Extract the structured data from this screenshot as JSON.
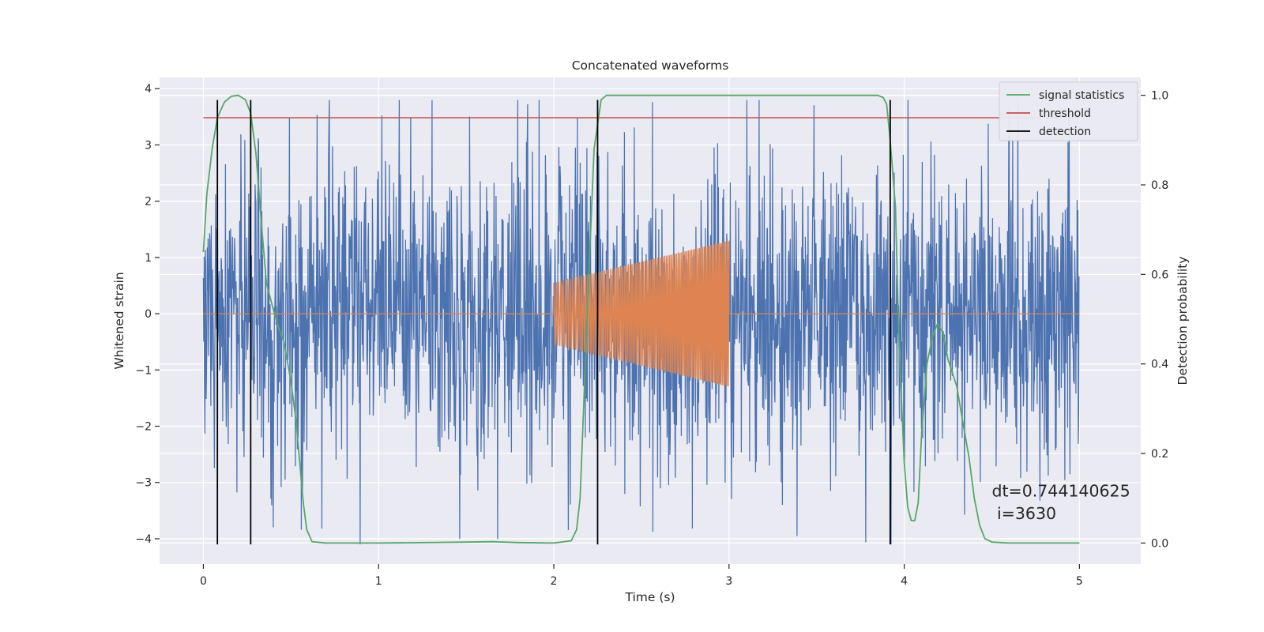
{
  "chart_data": {
    "type": "line",
    "title": "Concatenated waveforms",
    "xlabel": "Time (s)",
    "ylabel_left": "Whitened strain",
    "ylabel_right": "Detection probability",
    "xlim": [
      -0.25,
      5.35
    ],
    "ylim_left": [
      -4.45,
      4.2
    ],
    "ylim_right": [
      -0.047,
      1.04
    ],
    "x_ticks": [
      0,
      1,
      2,
      3,
      4,
      5
    ],
    "x_tick_labels": [
      "0",
      "1",
      "2",
      "3",
      "4",
      "5"
    ],
    "y_left_ticks": [
      -4,
      -3,
      -2,
      -1,
      0,
      1,
      2,
      3,
      4
    ],
    "y_left_tick_labels": [
      "−4",
      "−3",
      "−2",
      "−1",
      "0",
      "1",
      "2",
      "3",
      "4"
    ],
    "y_right_ticks": [
      0.0,
      0.2,
      0.4,
      0.6,
      0.8,
      1.0
    ],
    "y_right_tick_labels": [
      "0.0",
      "0.2",
      "0.4",
      "0.6",
      "0.8",
      "1.0"
    ],
    "grid": true,
    "legend": {
      "placement": "top-right",
      "entries": [
        "signal statistics",
        "threshold",
        "detection"
      ]
    },
    "colors": {
      "noise": "#4c72b0",
      "signal": "#dd8452",
      "statistics": "#55a868",
      "threshold": "#c44e52",
      "detection": "#000000",
      "background": "#eaeaf2",
      "grid": "#ffffff"
    },
    "noise": {
      "name": "whitened strain",
      "axis": "left",
      "x_range": [
        0,
        5
      ],
      "amplitude_std": 0.9,
      "peak_min": -4.1,
      "peak_max": 3.8
    },
    "signal": {
      "name": "injected waveform",
      "axis": "left",
      "x_range": [
        0,
        5
      ],
      "chirp_start": 2.0,
      "chirp_end": 3.0,
      "amplitude_start": 0.55,
      "amplitude_end": 1.3,
      "cycles": 95
    },
    "statistics": {
      "name": "signal statistics",
      "axis": "right",
      "x": [
        0.0,
        0.02,
        0.05,
        0.08,
        0.12,
        0.16,
        0.2,
        0.24,
        0.27,
        0.3,
        0.33,
        0.36,
        0.4,
        0.43,
        0.46,
        0.5,
        0.53,
        0.55,
        0.57,
        0.59,
        0.62,
        0.7,
        1.0,
        1.5,
        1.65,
        1.8,
        2.0,
        2.1,
        2.13,
        2.15,
        2.17,
        2.2,
        2.23,
        2.27,
        2.3,
        2.4,
        3.0,
        3.5,
        3.85,
        3.88,
        3.9,
        3.92,
        3.95,
        3.97,
        4.0,
        4.02,
        4.04,
        4.06,
        4.08,
        4.1,
        4.13,
        4.16,
        4.19,
        4.22,
        4.25,
        4.3,
        4.33,
        4.37,
        4.4,
        4.43,
        4.46,
        4.5,
        4.6,
        5.0
      ],
      "y": [
        0.65,
        0.78,
        0.88,
        0.95,
        0.985,
        0.998,
        1.0,
        0.99,
        0.96,
        0.87,
        0.72,
        0.58,
        0.52,
        0.48,
        0.45,
        0.36,
        0.27,
        0.18,
        0.09,
        0.03,
        0.003,
        0.0,
        0.0,
        0.002,
        0.003,
        0.001,
        0.0,
        0.005,
        0.03,
        0.1,
        0.3,
        0.6,
        0.88,
        0.99,
        1.0,
        1.0,
        1.0,
        1.0,
        1.0,
        0.995,
        0.98,
        0.9,
        0.75,
        0.45,
        0.18,
        0.08,
        0.05,
        0.05,
        0.09,
        0.25,
        0.4,
        0.46,
        0.49,
        0.47,
        0.41,
        0.35,
        0.28,
        0.19,
        0.1,
        0.04,
        0.01,
        0.002,
        0.0,
        0.0
      ]
    },
    "threshold": {
      "name": "threshold",
      "axis": "right",
      "value": 0.95,
      "x_range": [
        0,
        5
      ]
    },
    "detections": {
      "name": "detection",
      "axis": "left",
      "x": [
        0.08,
        0.27,
        2.25,
        3.92
      ],
      "y_range": [
        -4.1,
        3.8
      ]
    },
    "annotations": {
      "dt": "dt=0.744140625",
      "i": " i=3630",
      "dt_x": 4.5,
      "dt_y": -3.25,
      "i_x": 4.5,
      "i_y": -3.65
    }
  }
}
